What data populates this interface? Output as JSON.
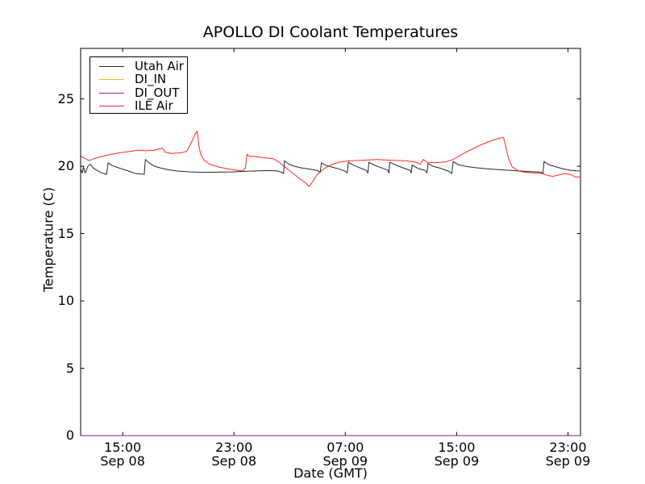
{
  "chart_data": {
    "type": "line",
    "title": "APOLLO DI Coolant Temperatures",
    "xlabel": "Date (GMT)",
    "ylabel": "Temperature (C)",
    "grid": false,
    "legend_position": "upper left",
    "x_unit": "hours since Sep 08 00:00 GMT",
    "x_range_hours": [
      11.98,
      47.9
    ],
    "y_range": [
      0,
      28.75
    ],
    "y_ticks": [
      0,
      5,
      10,
      15,
      20,
      25
    ],
    "x_ticks": [
      {
        "hour": 15,
        "time": "15:00",
        "date": "Sep 08"
      },
      {
        "hour": 23,
        "time": "23:00",
        "date": "Sep 08"
      },
      {
        "hour": 31,
        "time": "07:00",
        "date": "Sep 09"
      },
      {
        "hour": 39,
        "time": "15:00",
        "date": "Sep 09"
      },
      {
        "hour": 47,
        "time": "23:00",
        "date": "Sep 09"
      }
    ],
    "series": [
      {
        "name": "Utah Air",
        "color": "#000000",
        "points": [
          [
            12.0,
            19.75
          ],
          [
            12.1,
            19.5
          ],
          [
            12.18,
            19.95
          ],
          [
            12.3,
            19.5
          ],
          [
            12.5,
            20.0
          ],
          [
            12.68,
            20.15
          ],
          [
            12.9,
            19.85
          ],
          [
            13.15,
            19.7
          ],
          [
            13.5,
            19.5
          ],
          [
            13.85,
            19.4
          ],
          [
            13.95,
            20.25
          ],
          [
            14.25,
            20.05
          ],
          [
            14.8,
            19.85
          ],
          [
            15.4,
            19.65
          ],
          [
            15.95,
            19.45
          ],
          [
            16.55,
            19.4
          ],
          [
            16.63,
            20.5
          ],
          [
            16.9,
            20.25
          ],
          [
            17.3,
            20.0
          ],
          [
            17.8,
            19.85
          ],
          [
            18.4,
            19.72
          ],
          [
            19.1,
            19.63
          ],
          [
            19.9,
            19.58
          ],
          [
            20.8,
            19.55
          ],
          [
            21.8,
            19.56
          ],
          [
            22.8,
            19.58
          ],
          [
            23.8,
            19.62
          ],
          [
            24.8,
            19.66
          ],
          [
            25.6,
            19.68
          ],
          [
            26.1,
            19.65
          ],
          [
            26.45,
            19.55
          ],
          [
            26.56,
            19.45
          ],
          [
            26.63,
            20.4
          ],
          [
            26.95,
            20.15
          ],
          [
            27.35,
            20.0
          ],
          [
            27.85,
            19.88
          ],
          [
            28.45,
            19.78
          ],
          [
            29.0,
            19.68
          ],
          [
            29.2,
            19.55
          ],
          [
            29.28,
            20.25
          ],
          [
            29.6,
            20.08
          ],
          [
            30.1,
            19.92
          ],
          [
            30.6,
            19.78
          ],
          [
            31.0,
            19.62
          ],
          [
            31.14,
            19.5
          ],
          [
            31.22,
            20.3
          ],
          [
            31.55,
            20.1
          ],
          [
            32.0,
            19.9
          ],
          [
            32.5,
            19.7
          ],
          [
            32.62,
            19.5
          ],
          [
            32.7,
            20.3
          ],
          [
            33.05,
            20.1
          ],
          [
            33.55,
            19.9
          ],
          [
            34.05,
            19.72
          ],
          [
            34.13,
            19.5
          ],
          [
            34.2,
            20.3
          ],
          [
            34.6,
            20.1
          ],
          [
            35.15,
            19.88
          ],
          [
            35.65,
            19.7
          ],
          [
            35.74,
            19.5
          ],
          [
            35.8,
            20.1
          ],
          [
            36.2,
            19.85
          ],
          [
            36.75,
            19.68
          ],
          [
            36.87,
            19.5
          ],
          [
            36.94,
            20.2
          ],
          [
            37.3,
            20.0
          ],
          [
            37.85,
            19.85
          ],
          [
            38.45,
            19.62
          ],
          [
            38.65,
            19.45
          ],
          [
            38.75,
            20.35
          ],
          [
            39.1,
            20.12
          ],
          [
            39.7,
            19.98
          ],
          [
            40.3,
            19.9
          ],
          [
            41.1,
            19.82
          ],
          [
            42.0,
            19.75
          ],
          [
            43.0,
            19.68
          ],
          [
            43.9,
            19.62
          ],
          [
            44.7,
            19.58
          ],
          [
            45.1,
            19.55
          ],
          [
            45.2,
            19.45
          ],
          [
            45.28,
            20.35
          ],
          [
            45.65,
            20.1
          ],
          [
            46.15,
            19.95
          ],
          [
            46.65,
            19.8
          ],
          [
            47.2,
            19.7
          ],
          [
            47.6,
            19.66
          ],
          [
            47.85,
            19.65
          ]
        ]
      },
      {
        "name": "DI_IN",
        "color": "#ffa500",
        "points": [
          [
            12.0,
            0
          ],
          [
            47.85,
            0
          ]
        ]
      },
      {
        "name": "DI_OUT",
        "color": "#800080",
        "points": [
          [
            12.0,
            0
          ],
          [
            47.85,
            0
          ]
        ]
      },
      {
        "name": "ILE Air",
        "color": "#ff0000",
        "points": [
          [
            12.0,
            20.75
          ],
          [
            12.35,
            20.55
          ],
          [
            12.6,
            20.42
          ],
          [
            12.9,
            20.55
          ],
          [
            13.4,
            20.7
          ],
          [
            14.0,
            20.85
          ],
          [
            14.8,
            21.0
          ],
          [
            15.5,
            21.1
          ],
          [
            16.1,
            21.2
          ],
          [
            16.7,
            21.15
          ],
          [
            17.3,
            21.2
          ],
          [
            17.87,
            21.35
          ],
          [
            18.05,
            21.05
          ],
          [
            18.5,
            20.95
          ],
          [
            19.2,
            21.0
          ],
          [
            19.6,
            21.1
          ],
          [
            20.0,
            21.9
          ],
          [
            20.25,
            22.45
          ],
          [
            20.35,
            22.6
          ],
          [
            20.48,
            21.5
          ],
          [
            20.62,
            20.85
          ],
          [
            20.85,
            20.45
          ],
          [
            21.25,
            20.15
          ],
          [
            21.85,
            19.95
          ],
          [
            22.55,
            19.8
          ],
          [
            23.25,
            19.7
          ],
          [
            23.6,
            19.65
          ],
          [
            23.82,
            19.85
          ],
          [
            23.94,
            20.9
          ],
          [
            24.1,
            20.75
          ],
          [
            24.6,
            20.7
          ],
          [
            25.3,
            20.62
          ],
          [
            25.85,
            20.55
          ],
          [
            26.25,
            20.3
          ],
          [
            26.65,
            19.95
          ],
          [
            27.15,
            19.55
          ],
          [
            27.7,
            19.1
          ],
          [
            28.1,
            18.8
          ],
          [
            28.4,
            18.5
          ],
          [
            28.65,
            18.85
          ],
          [
            29.0,
            19.4
          ],
          [
            29.45,
            19.8
          ],
          [
            29.95,
            20.1
          ],
          [
            30.55,
            20.3
          ],
          [
            31.25,
            20.4
          ],
          [
            32.25,
            20.45
          ],
          [
            33.25,
            20.5
          ],
          [
            34.25,
            20.45
          ],
          [
            35.4,
            20.4
          ],
          [
            36.1,
            20.3
          ],
          [
            36.38,
            20.15
          ],
          [
            36.6,
            20.5
          ],
          [
            36.85,
            20.3
          ],
          [
            37.5,
            20.27
          ],
          [
            38.2,
            20.32
          ],
          [
            38.75,
            20.5
          ],
          [
            39.25,
            20.8
          ],
          [
            39.85,
            21.15
          ],
          [
            40.55,
            21.5
          ],
          [
            41.25,
            21.8
          ],
          [
            41.95,
            22.05
          ],
          [
            42.37,
            22.15
          ],
          [
            42.55,
            21.4
          ],
          [
            42.72,
            20.6
          ],
          [
            43.0,
            19.95
          ],
          [
            43.45,
            19.65
          ],
          [
            43.95,
            19.55
          ],
          [
            44.55,
            19.5
          ],
          [
            45.15,
            19.45
          ],
          [
            45.65,
            19.3
          ],
          [
            45.9,
            19.25
          ],
          [
            46.35,
            19.35
          ],
          [
            46.75,
            19.45
          ],
          [
            47.15,
            19.4
          ],
          [
            47.55,
            19.2
          ],
          [
            47.85,
            19.2
          ]
        ]
      }
    ]
  }
}
